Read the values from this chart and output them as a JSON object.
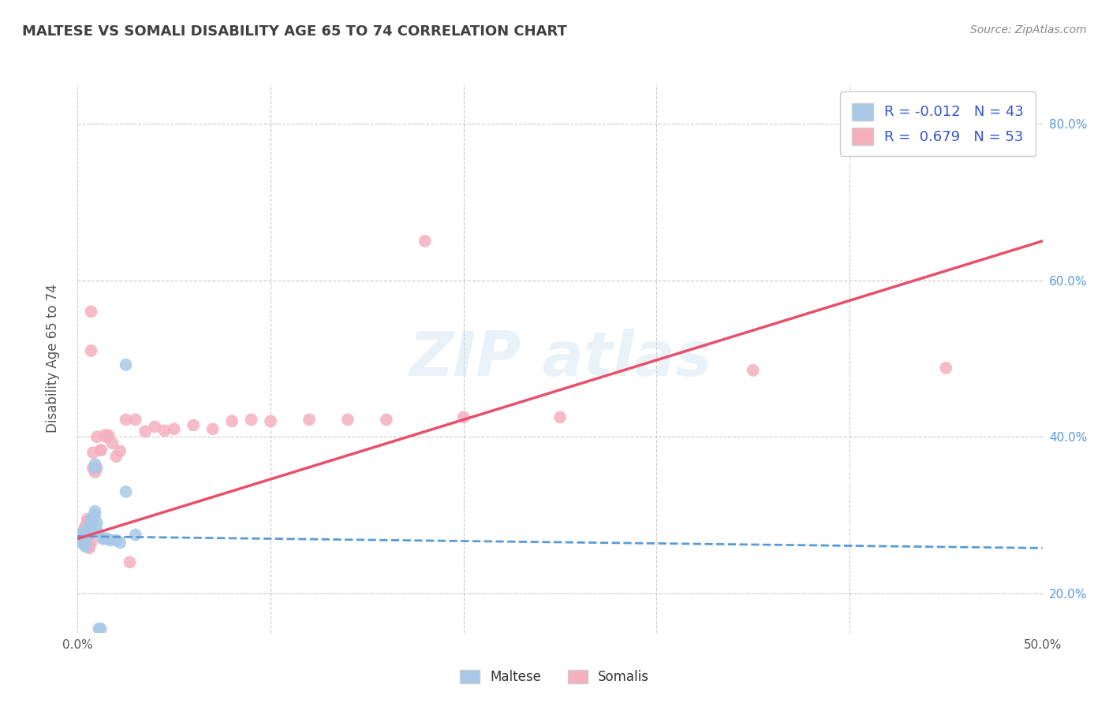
{
  "title": "MALTESE VS SOMALI DISABILITY AGE 65 TO 74 CORRELATION CHART",
  "source": "Source: ZipAtlas.com",
  "ylabel": "Disability Age 65 to 74",
  "xlim": [
    0.0,
    0.5
  ],
  "ylim": [
    0.15,
    0.85
  ],
  "xticks": [
    0.0,
    0.1,
    0.2,
    0.3,
    0.4,
    0.5
  ],
  "xticklabels": [
    "0.0%",
    "",
    "",
    "",
    "",
    "50.0%"
  ],
  "yticks": [
    0.2,
    0.4,
    0.6,
    0.8
  ],
  "yticklabels": [
    "20.0%",
    "40.0%",
    "60.0%",
    "80.0%"
  ],
  "maltese_R": "-0.012",
  "maltese_N": "43",
  "somali_R": "0.679",
  "somali_N": "53",
  "maltese_color": "#a8c8e8",
  "somali_color": "#f5b0c0",
  "maltese_line_color": "#5b9bd5",
  "somali_line_color": "#e8506a",
  "bg_color": "#ffffff",
  "grid_color": "#bbbbbb",
  "title_color": "#404040",
  "maltese_x": [
    0.001,
    0.001,
    0.002,
    0.002,
    0.002,
    0.003,
    0.003,
    0.003,
    0.004,
    0.004,
    0.004,
    0.004,
    0.005,
    0.005,
    0.005,
    0.005,
    0.006,
    0.006,
    0.006,
    0.006,
    0.007,
    0.007,
    0.007,
    0.007,
    0.008,
    0.008,
    0.009,
    0.009,
    0.009,
    0.009,
    0.01,
    0.01,
    0.011,
    0.012,
    0.013,
    0.014,
    0.015,
    0.017,
    0.02,
    0.022,
    0.025,
    0.025,
    0.03
  ],
  "maltese_y": [
    0.27,
    0.268,
    0.27,
    0.268,
    0.265,
    0.275,
    0.272,
    0.278,
    0.27,
    0.273,
    0.266,
    0.26,
    0.28,
    0.278,
    0.278,
    0.274,
    0.285,
    0.283,
    0.282,
    0.282,
    0.295,
    0.292,
    0.292,
    0.28,
    0.298,
    0.293,
    0.305,
    0.3,
    0.365,
    0.36,
    0.29,
    0.28,
    0.155,
    0.155,
    0.27,
    0.27,
    0.27,
    0.268,
    0.268,
    0.265,
    0.492,
    0.33,
    0.275
  ],
  "somali_x": [
    0.001,
    0.001,
    0.002,
    0.002,
    0.002,
    0.003,
    0.003,
    0.003,
    0.004,
    0.004,
    0.004,
    0.005,
    0.005,
    0.005,
    0.005,
    0.006,
    0.006,
    0.007,
    0.007,
    0.007,
    0.008,
    0.008,
    0.009,
    0.01,
    0.01,
    0.012,
    0.012,
    0.014,
    0.015,
    0.016,
    0.018,
    0.02,
    0.022,
    0.025,
    0.027,
    0.03,
    0.035,
    0.04,
    0.045,
    0.05,
    0.06,
    0.07,
    0.08,
    0.09,
    0.1,
    0.12,
    0.14,
    0.16,
    0.18,
    0.2,
    0.25,
    0.35,
    0.45
  ],
  "somali_y": [
    0.27,
    0.268,
    0.272,
    0.275,
    0.266,
    0.278,
    0.275,
    0.28,
    0.285,
    0.285,
    0.27,
    0.295,
    0.292,
    0.288,
    0.268,
    0.26,
    0.258,
    0.56,
    0.51,
    0.265,
    0.38,
    0.36,
    0.355,
    0.36,
    0.4,
    0.383,
    0.383,
    0.402,
    0.4,
    0.402,
    0.392,
    0.375,
    0.382,
    0.422,
    0.24,
    0.422,
    0.407,
    0.413,
    0.408,
    0.41,
    0.415,
    0.41,
    0.42,
    0.422,
    0.42,
    0.422,
    0.422,
    0.422,
    0.65,
    0.425,
    0.425,
    0.485,
    0.488
  ]
}
